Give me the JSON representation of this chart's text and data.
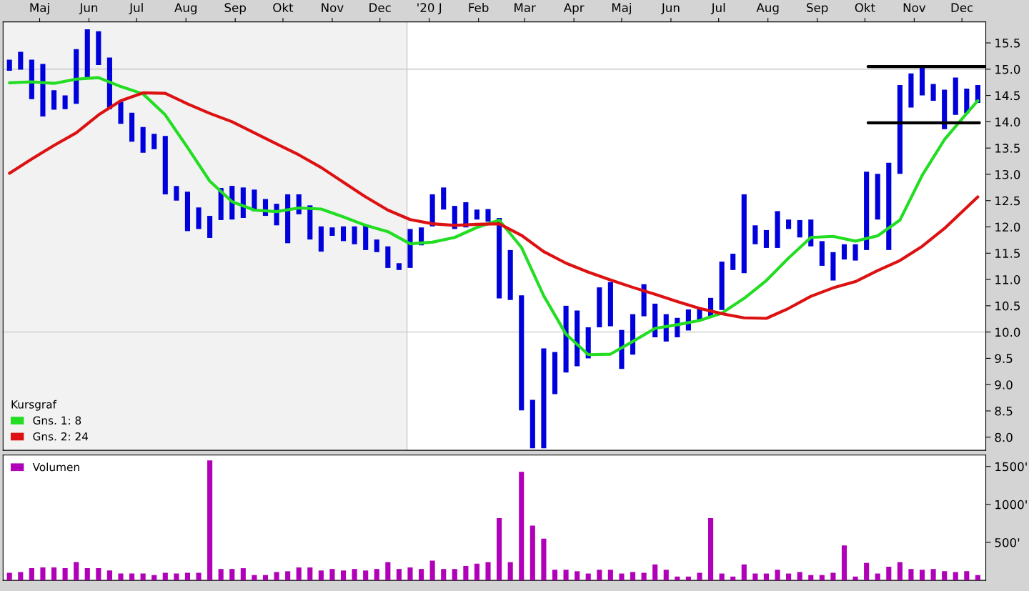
{
  "chart_data": [
    {
      "type": "bar",
      "legend": "lower left",
      "legend_title": "Kursgraf",
      "x": [
        "2019-04-26",
        "2019-05-03",
        "2019-05-10",
        "2019-05-17",
        "2019-05-24",
        "2019-05-31",
        "2019-06-07",
        "2019-06-14",
        "2019-06-21",
        "2019-06-28",
        "2019-07-05",
        "2019-07-12",
        "2019-07-19",
        "2019-07-26",
        "2019-08-02",
        "2019-08-09",
        "2019-08-16",
        "2019-08-23",
        "2019-08-30",
        "2019-09-06",
        "2019-09-13",
        "2019-09-20",
        "2019-09-27",
        "2019-10-04",
        "2019-10-11",
        "2019-10-18",
        "2019-10-25",
        "2019-11-01",
        "2019-11-08",
        "2019-11-15",
        "2019-11-22",
        "2019-11-29",
        "2019-12-06",
        "2019-12-13",
        "2019-12-20",
        "2019-12-27",
        "2020-01-03",
        "2020-01-10",
        "2020-01-17",
        "2020-01-24",
        "2020-01-31",
        "2020-02-07",
        "2020-02-14",
        "2020-02-21",
        "2020-02-28",
        "2020-03-06",
        "2020-03-13",
        "2020-03-20",
        "2020-03-27",
        "2020-04-03",
        "2020-04-10",
        "2020-04-17",
        "2020-04-24",
        "2020-05-01",
        "2020-05-08",
        "2020-05-15",
        "2020-05-22",
        "2020-05-29",
        "2020-06-05",
        "2020-06-12",
        "2020-06-19",
        "2020-06-26",
        "2020-07-03",
        "2020-07-10",
        "2020-07-17",
        "2020-07-24",
        "2020-07-31",
        "2020-08-07",
        "2020-08-14",
        "2020-08-21",
        "2020-08-28",
        "2020-09-04",
        "2020-09-11",
        "2020-09-18",
        "2020-09-25",
        "2020-10-02",
        "2020-10-09",
        "2020-10-16",
        "2020-10-23",
        "2020-10-30",
        "2020-11-06",
        "2020-11-13",
        "2020-11-20",
        "2020-11-27",
        "2020-12-04",
        "2020-12-11",
        "2020-12-18",
        "2020-12-25"
      ],
      "series": [
        {
          "type": "bar",
          "color": "#0000dd",
          "base": [
            14.97,
            14.99,
            14.43,
            14.1,
            14.23,
            14.24,
            14.34,
            14.84,
            15.08,
            14.24,
            13.96,
            13.62,
            13.41,
            13.48,
            12.62,
            12.5,
            11.92,
            11.96,
            11.79,
            12.13,
            12.14,
            12.17,
            12.3,
            12.21,
            12.03,
            11.69,
            12.24,
            11.76,
            11.53,
            11.83,
            11.73,
            11.67,
            11.56,
            11.52,
            11.22,
            11.18,
            11.22,
            11.65,
            12.01,
            12.33,
            11.96,
            11.99,
            12.14,
            12.1,
            10.64,
            10.61,
            8.51,
            7.79,
            7.79,
            8.82,
            9.23,
            9.35,
            9.5,
            10.09,
            10.11,
            9.3,
            9.57,
            10.3,
            9.9,
            9.82,
            9.9,
            10.03,
            10.23,
            10.3,
            10.42,
            11.18,
            11.12,
            11.67,
            11.6,
            11.6,
            11.96,
            11.8,
            11.63,
            11.26,
            10.98,
            11.38,
            11.36,
            11.56,
            12.14,
            11.56,
            13.01,
            14.27,
            14.5,
            14.4,
            13.86,
            14.13,
            14.16,
            14.36
          ],
          "values": [
            0.21,
            0.34,
            0.75,
            1.0,
            0.37,
            0.26,
            1.04,
            0.92,
            0.64,
            0.98,
            0.42,
            0.55,
            0.49,
            0.29,
            1.11,
            0.28,
            0.75,
            0.41,
            0.42,
            0.61,
            0.64,
            0.58,
            0.41,
            0.32,
            0.41,
            0.93,
            0.38,
            0.65,
            0.48,
            0.16,
            0.28,
            0.34,
            0.47,
            0.24,
            0.41,
            0.13,
            0.74,
            0.34,
            0.61,
            0.42,
            0.44,
            0.48,
            0.19,
            0.24,
            1.53,
            0.95,
            2.19,
            0.92,
            1.9,
            0.8,
            1.27,
            1.06,
            0.59,
            0.76,
            0.84,
            0.74,
            0.77,
            0.61,
            0.64,
            0.52,
            0.37,
            0.4,
            0.22,
            0.35,
            0.92,
            0.31,
            1.5,
            0.36,
            0.34,
            0.7,
            0.18,
            0.33,
            0.51,
            0.47,
            0.54,
            0.29,
            0.31,
            1.49,
            0.87,
            1.66,
            1.69,
            0.65,
            0.55,
            0.32,
            0.75,
            0.71,
            0.47,
            0.34
          ]
        },
        {
          "type": "line",
          "name": "Gns. 1: 8",
          "color": "#22dd22",
          "x": [
            "2019-04-26",
            "2019-05-10",
            "2019-05-24",
            "2019-06-07",
            "2019-06-21",
            "2019-07-05",
            "2019-07-19",
            "2019-08-02",
            "2019-08-16",
            "2019-08-30",
            "2019-09-13",
            "2019-09-27",
            "2019-10-11",
            "2019-10-25",
            "2019-11-08",
            "2019-11-22",
            "2019-12-06",
            "2019-12-20",
            "2020-01-03",
            "2020-01-17",
            "2020-01-31",
            "2020-02-14",
            "2020-02-28",
            "2020-03-13",
            "2020-03-27",
            "2020-04-10",
            "2020-04-24",
            "2020-05-08",
            "2020-05-22",
            "2020-06-05",
            "2020-06-19",
            "2020-07-03",
            "2020-07-17",
            "2020-07-31",
            "2020-08-14",
            "2020-08-28",
            "2020-09-11",
            "2020-09-25",
            "2020-10-09",
            "2020-10-23",
            "2020-11-06",
            "2020-11-20",
            "2020-12-04",
            "2020-12-18",
            "2020-12-25"
          ],
          "values": [
            14.74,
            14.76,
            14.73,
            14.81,
            14.84,
            14.67,
            14.53,
            14.13,
            13.51,
            12.87,
            12.48,
            12.32,
            12.29,
            12.36,
            12.34,
            12.19,
            12.03,
            11.91,
            11.68,
            11.71,
            11.8,
            11.99,
            12.13,
            11.61,
            10.69,
            9.96,
            9.57,
            9.58,
            9.82,
            10.07,
            10.14,
            10.22,
            10.36,
            10.64,
            10.98,
            11.41,
            11.8,
            11.82,
            11.73,
            11.83,
            12.13,
            12.98,
            13.66,
            14.16,
            14.4
          ]
        },
        {
          "type": "line",
          "name": "Gns. 2: 24",
          "color": "#dd1111",
          "x": [
            "2019-04-26",
            "2019-05-10",
            "2019-05-24",
            "2019-06-07",
            "2019-06-21",
            "2019-07-05",
            "2019-07-19",
            "2019-08-02",
            "2019-08-16",
            "2019-08-30",
            "2019-09-13",
            "2019-09-27",
            "2019-10-11",
            "2019-10-25",
            "2019-11-08",
            "2019-11-22",
            "2019-12-06",
            "2019-12-20",
            "2020-01-03",
            "2020-01-17",
            "2020-01-31",
            "2020-02-14",
            "2020-02-28",
            "2020-03-13",
            "2020-03-27",
            "2020-04-10",
            "2020-04-24",
            "2020-05-08",
            "2020-05-22",
            "2020-06-05",
            "2020-06-19",
            "2020-07-03",
            "2020-07-17",
            "2020-07-31",
            "2020-08-14",
            "2020-08-28",
            "2020-09-11",
            "2020-09-25",
            "2020-10-09",
            "2020-10-23",
            "2020-11-06",
            "2020-11-20",
            "2020-12-04",
            "2020-12-18",
            "2020-12-25"
          ],
          "values": [
            13.02,
            13.29,
            13.55,
            13.79,
            14.13,
            14.4,
            14.55,
            14.54,
            14.34,
            14.16,
            14.0,
            13.79,
            13.58,
            13.37,
            13.13,
            12.85,
            12.57,
            12.32,
            12.14,
            12.06,
            12.03,
            12.05,
            12.06,
            11.84,
            11.53,
            11.31,
            11.14,
            10.99,
            10.85,
            10.72,
            10.58,
            10.45,
            10.35,
            10.27,
            10.26,
            10.45,
            10.68,
            10.84,
            10.96,
            11.17,
            11.36,
            11.63,
            11.97,
            12.37,
            12.57
          ]
        },
        {
          "type": "line",
          "color": "#000000",
          "x": [
            "2020-10-17",
            "2020-12-30"
          ],
          "values": [
            15.05,
            15.05
          ]
        },
        {
          "type": "line",
          "color": "#000000",
          "x": [
            "2020-10-17",
            "2020-12-26"
          ],
          "values": [
            13.98,
            13.98
          ]
        }
      ],
      "xlim": [
        "2019-04-22",
        "2020-12-30"
      ],
      "xticks": [
        {
          "value": "2019-05-15",
          "label": "Maj"
        },
        {
          "value": "2019-06-15",
          "label": "Jun"
        },
        {
          "value": "2019-07-15",
          "label": "Jul"
        },
        {
          "value": "2019-08-15",
          "label": "Aug"
        },
        {
          "value": "2019-09-15",
          "label": "Sep"
        },
        {
          "value": "2019-10-15",
          "label": "Okt"
        },
        {
          "value": "2019-11-15",
          "label": "Nov"
        },
        {
          "value": "2019-12-15",
          "label": "Dec"
        },
        {
          "value": "2020-01-15",
          "label": "'20 J"
        },
        {
          "value": "2020-02-15",
          "label": "Feb"
        },
        {
          "value": "2020-03-15",
          "label": "Mar"
        },
        {
          "value": "2020-04-15",
          "label": "Apr"
        },
        {
          "value": "2020-05-15",
          "label": "Maj"
        },
        {
          "value": "2020-06-15",
          "label": "Jun"
        },
        {
          "value": "2020-07-15",
          "label": "Jul"
        },
        {
          "value": "2020-08-15",
          "label": "Aug"
        },
        {
          "value": "2020-09-15",
          "label": "Sep"
        },
        {
          "value": "2020-10-15",
          "label": "Okt"
        },
        {
          "value": "2020-11-15",
          "label": "Nov"
        },
        {
          "value": "2020-12-15",
          "label": "Dec"
        }
      ],
      "ylim": [
        7.75,
        15.9
      ],
      "yticks": [
        {
          "value": 8.0,
          "label": "8.0"
        },
        {
          "value": 8.5,
          "label": "8.5"
        },
        {
          "value": 9.0,
          "label": "9.0"
        },
        {
          "value": 9.5,
          "label": "9.5"
        },
        {
          "value": 10.0,
          "label": "10.0"
        },
        {
          "value": 10.5,
          "label": "10.5"
        },
        {
          "value": 11.0,
          "label": "11.0"
        },
        {
          "value": 11.5,
          "label": "11.5"
        },
        {
          "value": 12.0,
          "label": "12.0"
        },
        {
          "value": 12.5,
          "label": "12.5"
        },
        {
          "value": 13.0,
          "label": "13.0"
        },
        {
          "value": 13.5,
          "label": "13.5"
        },
        {
          "value": 14.0,
          "label": "14.0"
        },
        {
          "value": 14.5,
          "label": "14.5"
        },
        {
          "value": 15.0,
          "label": "15.0"
        },
        {
          "value": 15.5,
          "label": "15.5"
        }
      ],
      "bands": [
        {
          "axis": "x",
          "from": "2019-04-22",
          "to": "2020-01-01",
          "color": "#f2f2f2"
        }
      ],
      "ref_lines": [
        {
          "axis": "y",
          "value": 10,
          "color": "#c8c8c8"
        },
        {
          "axis": "y",
          "value": 15,
          "color": "#c8c8c8"
        },
        {
          "axis": "x",
          "value": "2020-01-01",
          "color": "#c8c8c8"
        }
      ]
    },
    {
      "type": "bar",
      "legend": "top left",
      "tick_labels": "y",
      "x": [
        "2019-04-26",
        "2019-05-03",
        "2019-05-10",
        "2019-05-17",
        "2019-05-24",
        "2019-05-31",
        "2019-06-07",
        "2019-06-14",
        "2019-06-21",
        "2019-06-28",
        "2019-07-05",
        "2019-07-12",
        "2019-07-19",
        "2019-07-26",
        "2019-08-02",
        "2019-08-09",
        "2019-08-16",
        "2019-08-23",
        "2019-08-30",
        "2019-09-06",
        "2019-09-13",
        "2019-09-20",
        "2019-09-27",
        "2019-10-04",
        "2019-10-11",
        "2019-10-18",
        "2019-10-25",
        "2019-11-01",
        "2019-11-08",
        "2019-11-15",
        "2019-11-22",
        "2019-11-29",
        "2019-12-06",
        "2019-12-13",
        "2019-12-20",
        "2019-12-27",
        "2020-01-03",
        "2020-01-10",
        "2020-01-17",
        "2020-01-24",
        "2020-01-31",
        "2020-02-07",
        "2020-02-14",
        "2020-02-21",
        "2020-02-28",
        "2020-03-06",
        "2020-03-13",
        "2020-03-20",
        "2020-03-27",
        "2020-04-03",
        "2020-04-10",
        "2020-04-17",
        "2020-04-24",
        "2020-05-01",
        "2020-05-08",
        "2020-05-15",
        "2020-05-22",
        "2020-05-29",
        "2020-06-05",
        "2020-06-12",
        "2020-06-19",
        "2020-06-26",
        "2020-07-03",
        "2020-07-10",
        "2020-07-17",
        "2020-07-24",
        "2020-07-31",
        "2020-08-07",
        "2020-08-14",
        "2020-08-21",
        "2020-08-28",
        "2020-09-04",
        "2020-09-11",
        "2020-09-18",
        "2020-09-25",
        "2020-10-02",
        "2020-10-09",
        "2020-10-16",
        "2020-10-23",
        "2020-10-30",
        "2020-11-06",
        "2020-11-13",
        "2020-11-20",
        "2020-11-27",
        "2020-12-04",
        "2020-12-11",
        "2020-12-18",
        "2020-12-25"
      ],
      "series": [
        {
          "name": "Volumen",
          "color": "#b000b8",
          "values": [
            100,
            110,
            160,
            170,
            170,
            160,
            240,
            160,
            160,
            130,
            90,
            90,
            90,
            70,
            100,
            90,
            100,
            100,
            1580,
            150,
            150,
            160,
            70,
            70,
            110,
            120,
            170,
            170,
            130,
            150,
            130,
            150,
            130,
            150,
            240,
            150,
            170,
            150,
            260,
            150,
            150,
            190,
            220,
            240,
            820,
            240,
            1430,
            720,
            550,
            140,
            140,
            120,
            90,
            140,
            140,
            90,
            110,
            100,
            210,
            140,
            50,
            50,
            100,
            820,
            90,
            50,
            210,
            90,
            90,
            140,
            90,
            110,
            70,
            70,
            100,
            460,
            50,
            230,
            90,
            180,
            240,
            150,
            140,
            150,
            120,
            110,
            120,
            70
          ]
        }
      ],
      "xlim": [
        "2019-04-22",
        "2020-12-30"
      ],
      "ylim": [
        0,
        1650
      ],
      "yticks": [
        {
          "value": 500,
          "label": "500'"
        },
        {
          "value": 1000,
          "label": "1000'"
        },
        {
          "value": 1500,
          "label": "1500'"
        }
      ]
    }
  ]
}
